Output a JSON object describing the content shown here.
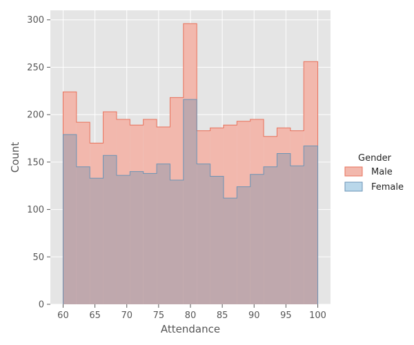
{
  "chart_data": {
    "type": "histogram-step",
    "xlabel": "Attendance",
    "ylabel": "Count",
    "xlim": [
      58,
      102
    ],
    "ylim": [
      0,
      310
    ],
    "xticks": [
      60,
      65,
      70,
      75,
      80,
      85,
      90,
      95,
      100
    ],
    "yticks": [
      0,
      50,
      100,
      150,
      200,
      250,
      300
    ],
    "grid": true,
    "legend_title": "Gender",
    "legend_position": "right",
    "bin_edges": [
      60,
      62.1,
      64.2,
      66.3,
      68.4,
      70.5,
      72.6,
      74.7,
      76.8,
      78.9,
      81.0,
      83.1,
      85.2,
      87.3,
      89.4,
      91.5,
      93.6,
      95.7,
      97.8,
      100
    ],
    "series": [
      {
        "name": "Male",
        "color": "#e8705a",
        "fill": "#f2b8ad",
        "values": [
          224,
          192,
          170,
          203,
          195,
          189,
          195,
          187,
          218,
          296,
          183,
          186,
          189,
          193,
          195,
          177,
          186,
          183,
          256
        ]
      },
      {
        "name": "Female",
        "color": "#6b93b5",
        "fill": "#b9d7ea",
        "values": [
          179,
          145,
          133,
          157,
          136,
          140,
          138,
          148,
          131,
          216,
          148,
          135,
          112,
          124,
          137,
          145,
          159,
          146,
          167
        ]
      }
    ]
  },
  "colors": {
    "panel_bg": "#e5e5e5",
    "grid": "#ffffff",
    "overlap_fill": "#bfa8ad"
  }
}
